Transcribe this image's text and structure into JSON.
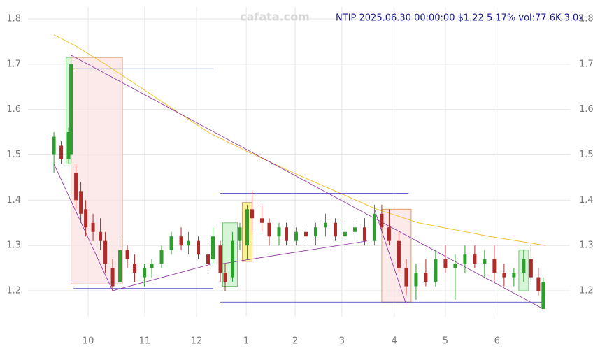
{
  "chart_data": {
    "type": "candlestick",
    "title": "NTIP 2025.06.30 00:00:00 $1.22 5.17% vol:77.6K 3.0x",
    "watermark": "cafata.com",
    "up_color": "#2e9e2e",
    "down_color": "#b02a2a",
    "grid": true,
    "xlim": [
      -10.6,
      210.9
    ],
    "ylim": [
      1.143,
      1.8
    ],
    "yticks": [
      1.2,
      1.3,
      1.4,
      1.5,
      1.6,
      1.7,
      1.8
    ],
    "xticks": [
      {
        "value": 14,
        "label": "10"
      },
      {
        "value": 37.1,
        "label": "11"
      },
      {
        "value": 58.3,
        "label": "12"
      },
      {
        "value": 78.6,
        "label": "1"
      },
      {
        "value": 98.6,
        "label": "2"
      },
      {
        "value": 117.7,
        "label": "3"
      },
      {
        "value": 139.1,
        "label": "4"
      },
      {
        "value": 160,
        "label": "5"
      },
      {
        "value": 181.1,
        "label": "6"
      }
    ],
    "x": [
      0,
      3,
      6,
      7,
      9,
      11,
      13,
      16,
      19,
      21,
      24,
      27,
      30,
      33,
      37,
      40,
      44,
      48,
      52,
      55,
      59,
      63,
      65,
      68,
      70,
      73,
      76,
      79,
      81,
      85,
      88,
      92,
      95,
      99,
      103,
      107,
      111,
      115,
      119,
      123,
      127,
      131,
      134,
      137,
      141,
      144,
      148,
      152,
      156,
      160,
      164,
      168,
      172,
      176,
      180,
      184,
      188,
      192,
      195,
      198,
      200
    ],
    "open": [
      1.5,
      1.52,
      1.49,
      1.5,
      1.46,
      1.42,
      1.38,
      1.35,
      1.33,
      1.31,
      1.25,
      1.22,
      1.29,
      1.26,
      1.23,
      1.25,
      1.26,
      1.29,
      1.32,
      1.3,
      1.31,
      1.28,
      1.27,
      1.3,
      1.24,
      1.23,
      1.31,
      1.3,
      1.38,
      1.36,
      1.35,
      1.32,
      1.34,
      1.31,
      1.33,
      1.32,
      1.34,
      1.35,
      1.32,
      1.33,
      1.34,
      1.31,
      1.37,
      1.34,
      1.31,
      1.25,
      1.21,
      1.24,
      1.22,
      1.27,
      1.25,
      1.26,
      1.28,
      1.26,
      1.27,
      1.24,
      1.23,
      1.24,
      1.27,
      1.23,
      1.16
    ],
    "high": [
      1.55,
      1.53,
      1.56,
      1.72,
      1.48,
      1.44,
      1.4,
      1.37,
      1.36,
      1.33,
      1.27,
      1.32,
      1.3,
      1.28,
      1.26,
      1.27,
      1.3,
      1.33,
      1.34,
      1.33,
      1.32,
      1.3,
      1.34,
      1.31,
      1.26,
      1.33,
      1.35,
      1.39,
      1.42,
      1.39,
      1.36,
      1.35,
      1.35,
      1.34,
      1.34,
      1.35,
      1.37,
      1.36,
      1.35,
      1.35,
      1.36,
      1.39,
      1.39,
      1.38,
      1.33,
      1.27,
      1.26,
      1.27,
      1.29,
      1.3,
      1.28,
      1.3,
      1.3,
      1.29,
      1.3,
      1.26,
      1.25,
      1.29,
      1.3,
      1.25,
      1.23
    ],
    "low": [
      1.46,
      1.48,
      1.48,
      1.48,
      1.38,
      1.35,
      1.32,
      1.31,
      1.29,
      1.24,
      1.2,
      1.21,
      1.25,
      1.22,
      1.21,
      1.23,
      1.25,
      1.28,
      1.29,
      1.28,
      1.27,
      1.24,
      1.26,
      1.22,
      1.2,
      1.22,
      1.29,
      1.27,
      1.33,
      1.33,
      1.3,
      1.3,
      1.3,
      1.3,
      1.31,
      1.3,
      1.32,
      1.31,
      1.29,
      1.31,
      1.3,
      1.3,
      1.33,
      1.3,
      1.24,
      1.19,
      1.18,
      1.21,
      1.21,
      1.24,
      1.18,
      1.24,
      1.25,
      1.23,
      1.22,
      1.21,
      1.21,
      1.22,
      1.22,
      1.19,
      1.16
    ],
    "close": [
      1.54,
      1.49,
      1.55,
      1.7,
      1.4,
      1.37,
      1.34,
      1.33,
      1.31,
      1.26,
      1.21,
      1.29,
      1.27,
      1.24,
      1.25,
      1.26,
      1.29,
      1.32,
      1.3,
      1.31,
      1.28,
      1.26,
      1.32,
      1.24,
      1.22,
      1.31,
      1.34,
      1.38,
      1.36,
      1.35,
      1.32,
      1.34,
      1.31,
      1.33,
      1.32,
      1.34,
      1.35,
      1.32,
      1.33,
      1.34,
      1.31,
      1.37,
      1.34,
      1.31,
      1.25,
      1.21,
      1.24,
      1.22,
      1.27,
      1.25,
      1.26,
      1.28,
      1.26,
      1.27,
      1.24,
      1.23,
      1.24,
      1.27,
      1.23,
      1.2,
      1.22
    ],
    "moving_average": {
      "color": "#f2c230",
      "x": [
        0,
        9,
        21,
        35,
        49,
        63,
        78,
        98,
        115,
        132,
        149,
        178,
        201
      ],
      "values": [
        1.765,
        1.74,
        1.7,
        1.65,
        1.6,
        1.55,
        1.51,
        1.46,
        1.42,
        1.38,
        1.35,
        1.32,
        1.3
      ]
    },
    "zones": [
      {
        "x0": 7,
        "x1": 28,
        "y0": 1.215,
        "y1": 1.715,
        "fill": "#fbe3e3",
        "stroke": "#d9a070"
      },
      {
        "x0": 5,
        "x1": 7,
        "y0": 1.48,
        "y1": 1.715,
        "fill": "#c8f2c8",
        "stroke": "#7bc47b"
      },
      {
        "x0": 69,
        "x1": 75,
        "y0": 1.21,
        "y1": 1.35,
        "fill": "#c8f2c8",
        "stroke": "#7bc47b"
      },
      {
        "x0": 77,
        "x1": 81,
        "y0": 1.265,
        "y1": 1.395,
        "fill": "#f5f07a",
        "stroke": "#d9a070"
      },
      {
        "x0": 134,
        "x1": 146,
        "y0": 1.175,
        "y1": 1.38,
        "fill": "#fbe3e3",
        "stroke": "#d9a070"
      },
      {
        "x0": 190,
        "x1": 194,
        "y0": 1.2,
        "y1": 1.29,
        "fill": "#c8f2c8",
        "stroke": "#7bc47b"
      }
    ],
    "trendlines": [
      {
        "x0": 7,
        "y0": 1.72,
        "x1": 200,
        "y1": 1.16,
        "color": "#8a2a9e"
      },
      {
        "x0": 0,
        "y0": 1.48,
        "x1": 24,
        "y1": 1.2,
        "color": "#8a2a9e"
      },
      {
        "x0": 24,
        "y0": 1.2,
        "x1": 65,
        "y1": 1.26,
        "color": "#8a2a9e"
      },
      {
        "x0": 69,
        "y0": 1.26,
        "x1": 128,
        "y1": 1.31,
        "color": "#8a2a9e"
      },
      {
        "x0": 131,
        "y0": 1.38,
        "x1": 144,
        "y1": 1.17,
        "color": "#8a2a9e"
      }
    ],
    "levels": [
      {
        "x0": 8,
        "x1": 65,
        "y": 1.69,
        "color": "#3333bb"
      },
      {
        "x0": 68,
        "x1": 145,
        "y": 1.415,
        "color": "#3333bb"
      },
      {
        "x0": 8,
        "x1": 65,
        "y": 1.205,
        "color": "#3333bb"
      },
      {
        "x0": 68,
        "x1": 200,
        "y": 1.175,
        "color": "#3333bb"
      }
    ]
  }
}
